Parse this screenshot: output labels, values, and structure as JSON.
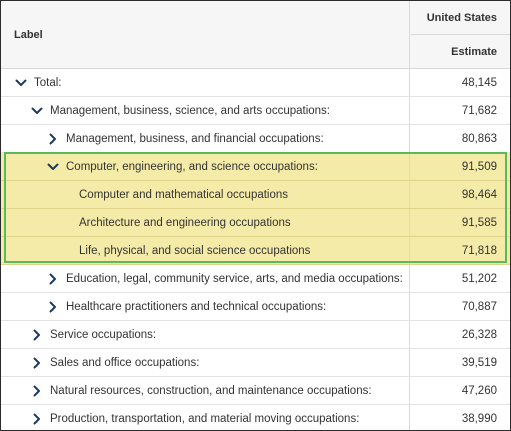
{
  "header": {
    "label_col": "Label",
    "geography": "United States",
    "measure": "Estimate"
  },
  "rows": [
    {
      "label": "Total:",
      "value": "48,145",
      "level": 0,
      "toggle": "expanded"
    },
    {
      "label": "Management, business, science, and arts occupations:",
      "value": "71,682",
      "level": 1,
      "toggle": "expanded"
    },
    {
      "label": "Management, business, and financial occupations:",
      "value": "80,863",
      "level": 2,
      "toggle": "collapsed"
    },
    {
      "label": "Computer, engineering, and science occupations:",
      "value": "91,509",
      "level": 2,
      "toggle": "expanded",
      "highlighted": true
    },
    {
      "label": "Computer and mathematical occupations",
      "value": "98,464",
      "level": 3,
      "toggle": "none",
      "highlighted": true
    },
    {
      "label": "Architecture and engineering occupations",
      "value": "91,585",
      "level": 3,
      "toggle": "none",
      "highlighted": true
    },
    {
      "label": "Life, physical, and social science occupations",
      "value": "71,818",
      "level": 3,
      "toggle": "none",
      "highlighted": true
    },
    {
      "label": "Education, legal, community service, arts, and media occupations:",
      "value": "51,202",
      "level": 2,
      "toggle": "collapsed"
    },
    {
      "label": "Healthcare practitioners and technical occupations:",
      "value": "70,887",
      "level": 2,
      "toggle": "collapsed"
    },
    {
      "label": "Service occupations:",
      "value": "26,328",
      "level": 1,
      "toggle": "collapsed"
    },
    {
      "label": "Sales and office occupations:",
      "value": "39,519",
      "level": 1,
      "toggle": "collapsed"
    },
    {
      "label": "Natural resources, construction, and maintenance occupations:",
      "value": "47,260",
      "level": 1,
      "toggle": "collapsed"
    },
    {
      "label": "Production, transportation, and material moving occupations:",
      "value": "38,990",
      "level": 1,
      "toggle": "collapsed"
    }
  ],
  "icons": {
    "expanded": "chevron-down-icon",
    "collapsed": "chevron-right-icon"
  },
  "colors": {
    "highlight_fill": "#f5eba8",
    "highlight_border": "#5cb85c",
    "chevron": "#1f3a5f"
  }
}
